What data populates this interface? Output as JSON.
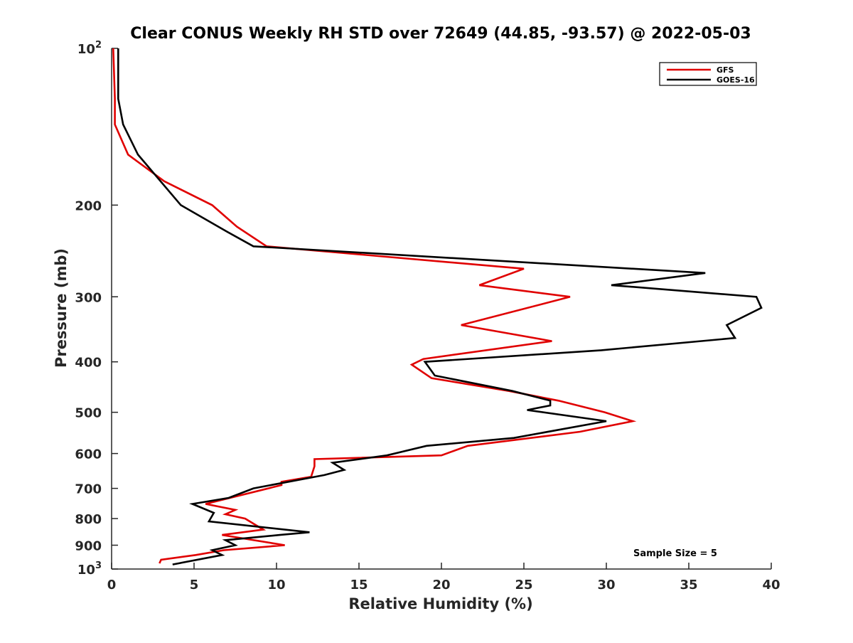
{
  "chart_data": {
    "type": "line",
    "title": "Clear CONUS Weekly RH STD over 72649 (44.85, -93.57) @ 2022-05-03",
    "xlabel": "Relative Humidity (%)",
    "ylabel": "Pressure (mb)",
    "xlim": [
      0,
      40
    ],
    "ylim": [
      100,
      1000
    ],
    "y_scale": "log",
    "y_reversed": true,
    "grid": false,
    "legend_position": "top-right",
    "x_ticks": [
      0,
      5,
      10,
      15,
      20,
      25,
      30,
      35,
      40
    ],
    "y_ticks": [
      {
        "value": 100,
        "label_base": "10",
        "label_exp": "2"
      },
      {
        "value": 200,
        "label": "200"
      },
      {
        "value": 300,
        "label": "300"
      },
      {
        "value": 400,
        "label": "400"
      },
      {
        "value": 500,
        "label": "500"
      },
      {
        "value": 600,
        "label": "600"
      },
      {
        "value": 700,
        "label": "700"
      },
      {
        "value": 800,
        "label": "800"
      },
      {
        "value": 900,
        "label": "900"
      },
      {
        "value": 1000,
        "label_base": "10",
        "label_exp": "3"
      }
    ],
    "series": [
      {
        "name": "GFS",
        "color": "#e00000",
        "points": [
          [
            0.1,
            100
          ],
          [
            0.2,
            125
          ],
          [
            0.2,
            140
          ],
          [
            1.0,
            160
          ],
          [
            3.2,
            180
          ],
          [
            6.1,
            200
          ],
          [
            7.6,
            220
          ],
          [
            9.4,
            240
          ],
          [
            25.0,
            265
          ],
          [
            22.3,
            285
          ],
          [
            27.8,
            300
          ],
          [
            21.2,
            340
          ],
          [
            26.7,
            365
          ],
          [
            18.9,
            395
          ],
          [
            18.2,
            405
          ],
          [
            19.4,
            430
          ],
          [
            24.1,
            455
          ],
          [
            27.1,
            475
          ],
          [
            29.9,
            500
          ],
          [
            31.6,
            520
          ],
          [
            28.4,
            545
          ],
          [
            21.6,
            580
          ],
          [
            20.0,
            605
          ],
          [
            12.3,
            615
          ],
          [
            12.3,
            635
          ],
          [
            12.1,
            665
          ],
          [
            10.3,
            680
          ],
          [
            10.3,
            690
          ],
          [
            5.7,
            750
          ],
          [
            7.5,
            770
          ],
          [
            6.9,
            785
          ],
          [
            8.1,
            800
          ],
          [
            9.2,
            840
          ],
          [
            6.7,
            860
          ],
          [
            10.5,
            900
          ],
          [
            6.8,
            920
          ],
          [
            5.1,
            940
          ],
          [
            3.0,
            960
          ],
          [
            2.9,
            975
          ]
        ]
      },
      {
        "name": "GOES-16",
        "color": "#000000",
        "points": [
          [
            0.4,
            100
          ],
          [
            0.4,
            125
          ],
          [
            0.7,
            140
          ],
          [
            1.6,
            160
          ],
          [
            4.2,
            200
          ],
          [
            7.0,
            225
          ],
          [
            8.6,
            240
          ],
          [
            36.0,
            270
          ],
          [
            30.3,
            285
          ],
          [
            39.1,
            300
          ],
          [
            39.4,
            315
          ],
          [
            37.3,
            340
          ],
          [
            37.8,
            360
          ],
          [
            29.7,
            380
          ],
          [
            19.0,
            400
          ],
          [
            19.6,
            425
          ],
          [
            24.3,
            455
          ],
          [
            26.6,
            475
          ],
          [
            26.6,
            485
          ],
          [
            25.2,
            495
          ],
          [
            30.0,
            520
          ],
          [
            24.4,
            560
          ],
          [
            19.1,
            580
          ],
          [
            16.7,
            605
          ],
          [
            13.4,
            625
          ],
          [
            14.1,
            645
          ],
          [
            12.9,
            660
          ],
          [
            8.6,
            700
          ],
          [
            7.1,
            730
          ],
          [
            4.9,
            750
          ],
          [
            6.2,
            780
          ],
          [
            5.9,
            810
          ],
          [
            12.0,
            850
          ],
          [
            10.2,
            860
          ],
          [
            6.9,
            880
          ],
          [
            7.5,
            900
          ],
          [
            6.1,
            920
          ],
          [
            6.7,
            940
          ],
          [
            3.7,
            980
          ]
        ]
      }
    ],
    "annotations": [
      {
        "text": "Sample Size = 5",
        "x": 32.5,
        "y": 930
      }
    ]
  }
}
